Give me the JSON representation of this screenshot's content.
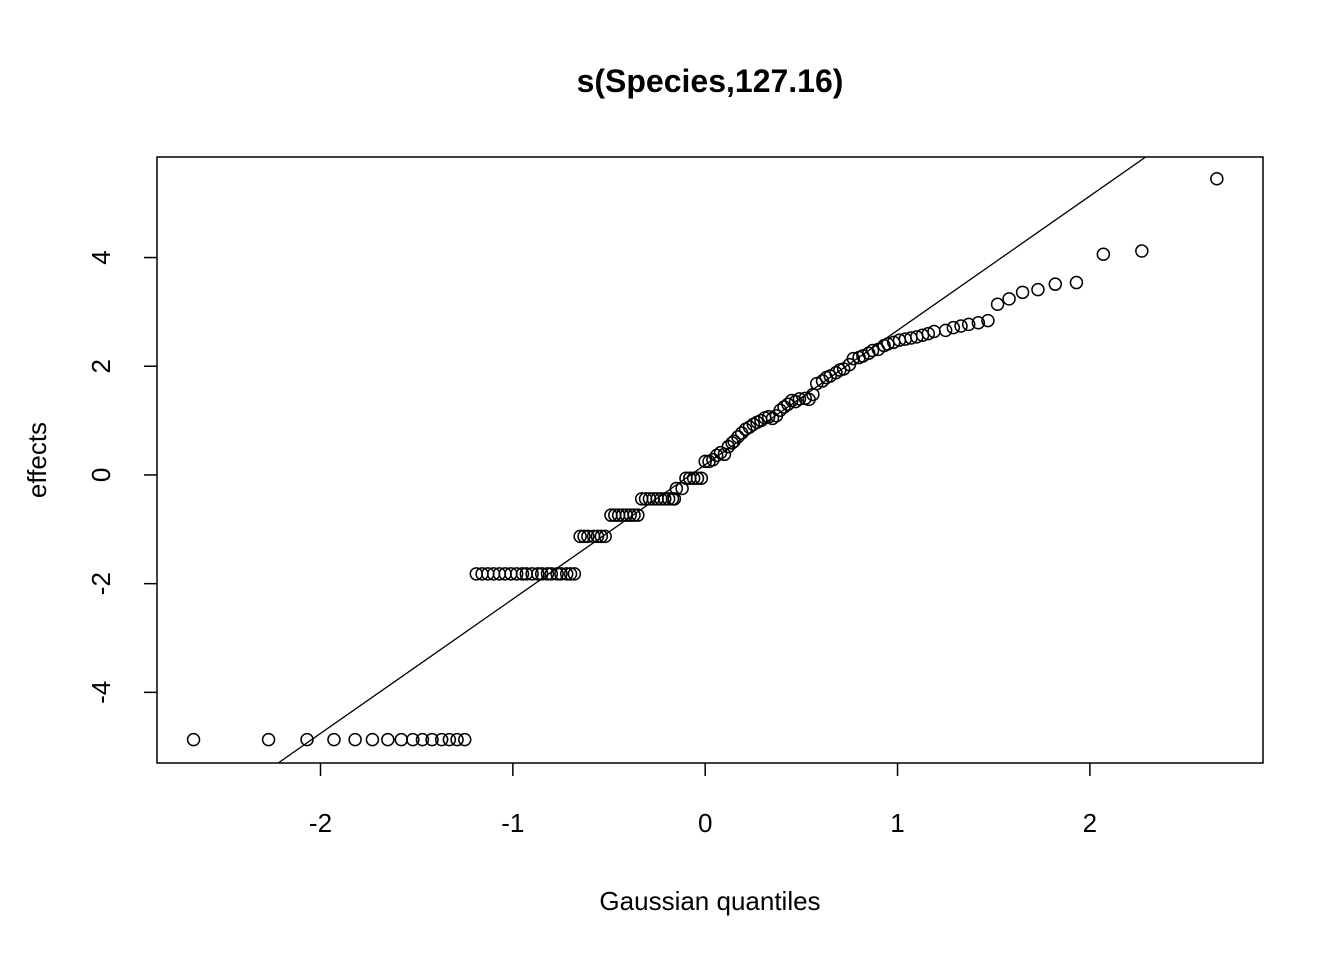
{
  "chart_data": {
    "type": "scatter",
    "title": "s(Species,127.16)",
    "xlabel": "Gaussian quantiles",
    "ylabel": "effects",
    "xlim": [
      -2.85,
      2.9
    ],
    "ylim": [
      -5.3,
      5.85
    ],
    "x_ticks": [
      -2,
      -1,
      0,
      1,
      2
    ],
    "x_tick_labels": [
      "-2",
      "-1",
      "0",
      "1",
      "2"
    ],
    "y_ticks": [
      -4,
      -2,
      0,
      2,
      4
    ],
    "y_tick_labels": [
      "-4",
      "-2",
      "0",
      "2",
      "4"
    ],
    "grid": false,
    "legend": "none",
    "reference_line": {
      "x": [
        -2.22,
        2.29
      ],
      "y": [
        -5.3,
        5.85
      ]
    },
    "points": [
      [
        -2.66,
        -4.87
      ],
      [
        -2.27,
        -4.87
      ],
      [
        -2.07,
        -4.87
      ],
      [
        -1.93,
        -4.87
      ],
      [
        -1.82,
        -4.87
      ],
      [
        -1.73,
        -4.87
      ],
      [
        -1.65,
        -4.87
      ],
      [
        -1.58,
        -4.87
      ],
      [
        -1.52,
        -4.87
      ],
      [
        -1.47,
        -4.87
      ],
      [
        -1.42,
        -4.87
      ],
      [
        -1.37,
        -4.87
      ],
      [
        -1.33,
        -4.87
      ],
      [
        -1.29,
        -4.87
      ],
      [
        -1.25,
        -4.87
      ],
      [
        -1.19,
        -1.82
      ],
      [
        -1.16,
        -1.82
      ],
      [
        -1.13,
        -1.82
      ],
      [
        -1.1,
        -1.82
      ],
      [
        -1.07,
        -1.82
      ],
      [
        -1.04,
        -1.82
      ],
      [
        -1.01,
        -1.82
      ],
      [
        -0.98,
        -1.82
      ],
      [
        -0.95,
        -1.82
      ],
      [
        -0.93,
        -1.82
      ],
      [
        -0.9,
        -1.82
      ],
      [
        -0.87,
        -1.82
      ],
      [
        -0.85,
        -1.82
      ],
      [
        -0.82,
        -1.82
      ],
      [
        -0.8,
        -1.82
      ],
      [
        -0.77,
        -1.82
      ],
      [
        -0.75,
        -1.82
      ],
      [
        -0.72,
        -1.82
      ],
      [
        -0.7,
        -1.82
      ],
      [
        -0.68,
        -1.82
      ],
      [
        -0.65,
        -1.13
      ],
      [
        -0.63,
        -1.13
      ],
      [
        -0.61,
        -1.13
      ],
      [
        -0.58,
        -1.13
      ],
      [
        -0.56,
        -1.13
      ],
      [
        -0.54,
        -1.13
      ],
      [
        -0.52,
        -1.13
      ],
      [
        -0.49,
        -0.74
      ],
      [
        -0.47,
        -0.74
      ],
      [
        -0.45,
        -0.74
      ],
      [
        -0.43,
        -0.74
      ],
      [
        -0.41,
        -0.74
      ],
      [
        -0.39,
        -0.74
      ],
      [
        -0.37,
        -0.74
      ],
      [
        -0.35,
        -0.74
      ],
      [
        -0.33,
        -0.44
      ],
      [
        -0.31,
        -0.44
      ],
      [
        -0.29,
        -0.44
      ],
      [
        -0.27,
        -0.44
      ],
      [
        -0.25,
        -0.44
      ],
      [
        -0.23,
        -0.44
      ],
      [
        -0.21,
        -0.44
      ],
      [
        -0.19,
        -0.44
      ],
      [
        -0.17,
        -0.44
      ],
      [
        -0.16,
        -0.44
      ],
      [
        -0.15,
        -0.25
      ],
      [
        -0.12,
        -0.25
      ],
      [
        -0.1,
        -0.06
      ],
      [
        -0.08,
        -0.06
      ],
      [
        -0.06,
        -0.06
      ],
      [
        -0.04,
        -0.06
      ],
      [
        -0.02,
        -0.06
      ],
      [
        0.0,
        0.25
      ],
      [
        0.02,
        0.25
      ],
      [
        0.04,
        0.28
      ],
      [
        0.06,
        0.36
      ],
      [
        0.08,
        0.41
      ],
      [
        0.1,
        0.38
      ],
      [
        0.12,
        0.52
      ],
      [
        0.14,
        0.59
      ],
      [
        0.15,
        0.62
      ],
      [
        0.17,
        0.7
      ],
      [
        0.19,
        0.77
      ],
      [
        0.21,
        0.84
      ],
      [
        0.23,
        0.88
      ],
      [
        0.25,
        0.93
      ],
      [
        0.27,
        0.97
      ],
      [
        0.29,
        1.0
      ],
      [
        0.31,
        1.05
      ],
      [
        0.33,
        1.07
      ],
      [
        0.35,
        1.04
      ],
      [
        0.37,
        1.09
      ],
      [
        0.39,
        1.19
      ],
      [
        0.41,
        1.25
      ],
      [
        0.43,
        1.3
      ],
      [
        0.45,
        1.37
      ],
      [
        0.47,
        1.35
      ],
      [
        0.49,
        1.4
      ],
      [
        0.52,
        1.41
      ],
      [
        0.54,
        1.39
      ],
      [
        0.56,
        1.48
      ],
      [
        0.58,
        1.68
      ],
      [
        0.61,
        1.73
      ],
      [
        0.63,
        1.79
      ],
      [
        0.65,
        1.82
      ],
      [
        0.68,
        1.88
      ],
      [
        0.7,
        1.93
      ],
      [
        0.72,
        1.95
      ],
      [
        0.75,
        2.03
      ],
      [
        0.77,
        2.14
      ],
      [
        0.8,
        2.16
      ],
      [
        0.82,
        2.19
      ],
      [
        0.85,
        2.24
      ],
      [
        0.87,
        2.29
      ],
      [
        0.9,
        2.31
      ],
      [
        0.93,
        2.38
      ],
      [
        0.95,
        2.41
      ],
      [
        0.98,
        2.44
      ],
      [
        1.01,
        2.48
      ],
      [
        1.04,
        2.5
      ],
      [
        1.07,
        2.52
      ],
      [
        1.1,
        2.54
      ],
      [
        1.13,
        2.57
      ],
      [
        1.16,
        2.6
      ],
      [
        1.19,
        2.64
      ],
      [
        1.25,
        2.66
      ],
      [
        1.29,
        2.71
      ],
      [
        1.33,
        2.74
      ],
      [
        1.37,
        2.77
      ],
      [
        1.42,
        2.8
      ],
      [
        1.47,
        2.84
      ],
      [
        1.52,
        3.14
      ],
      [
        1.58,
        3.24
      ],
      [
        1.65,
        3.36
      ],
      [
        1.73,
        3.41
      ],
      [
        1.82,
        3.51
      ],
      [
        1.93,
        3.54
      ],
      [
        2.07,
        4.06
      ],
      [
        2.27,
        4.12
      ],
      [
        2.66,
        5.45
      ]
    ]
  }
}
